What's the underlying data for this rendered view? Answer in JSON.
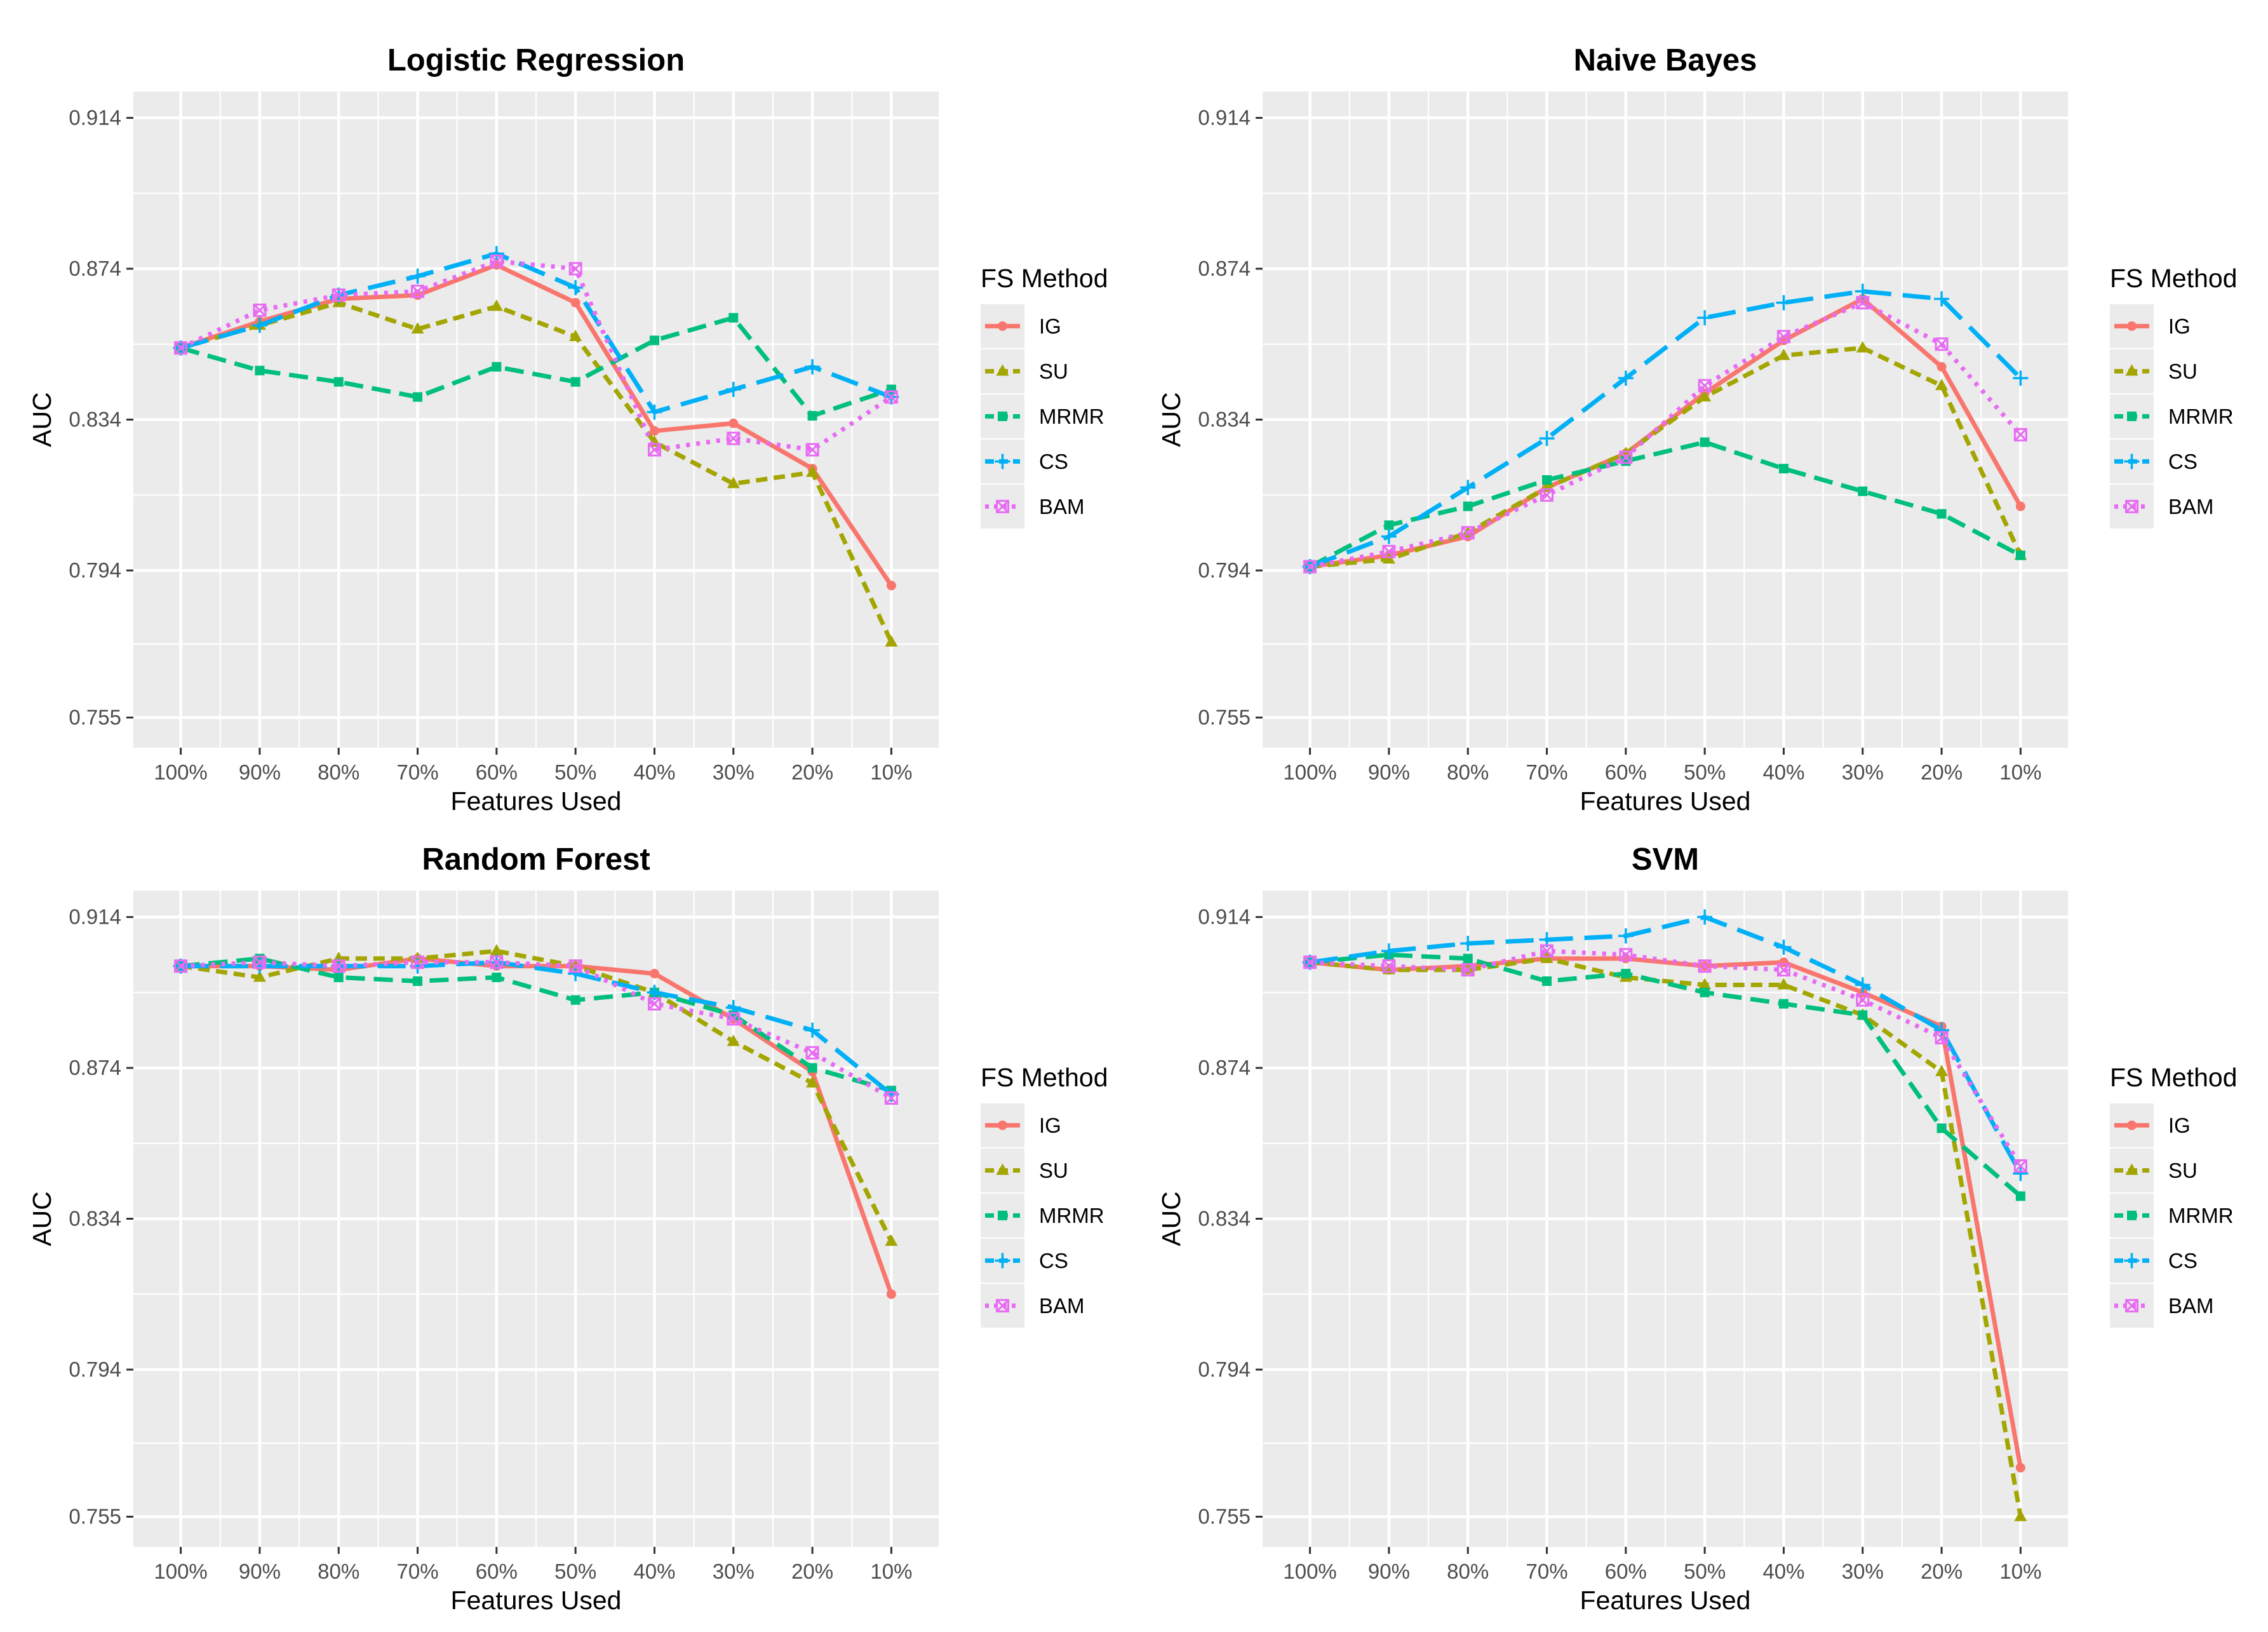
{
  "legend_title": "FS Method",
  "series_style": [
    {
      "name": "IG",
      "color": "#F8766D",
      "dash": "solid",
      "marker": "circle"
    },
    {
      "name": "SU",
      "color": "#A3A500",
      "dash": "short",
      "marker": "triangle"
    },
    {
      "name": "MRMR",
      "color": "#00BF7D",
      "dash": "long",
      "marker": "square"
    },
    {
      "name": "CS",
      "color": "#00B0F6",
      "dash": "longer",
      "marker": "plus"
    },
    {
      "name": "BAM",
      "color": "#E76BF3",
      "dash": "dotted",
      "marker": "boxcross"
    }
  ],
  "chart_data": [
    {
      "type": "line",
      "title": "Logistic Regression",
      "xlabel": "Features Used",
      "ylabel": "AUC",
      "ylim": [
        0.747,
        0.921
      ],
      "yticks": [
        "0.755",
        "0.794",
        "0.834",
        "0.874",
        "0.914"
      ],
      "categories": [
        "100%",
        "90%",
        "80%",
        "70%",
        "60%",
        "50%",
        "40%",
        "30%",
        "20%",
        "10%"
      ],
      "series": [
        {
          "name": "IG",
          "values": [
            0.853,
            0.86,
            0.866,
            0.867,
            0.875,
            0.865,
            0.831,
            0.833,
            0.821,
            0.79
          ]
        },
        {
          "name": "SU",
          "values": [
            0.853,
            0.859,
            0.865,
            0.858,
            0.864,
            0.856,
            0.828,
            0.817,
            0.82,
            0.775
          ]
        },
        {
          "name": "MRMR",
          "values": [
            0.853,
            0.847,
            0.844,
            0.84,
            0.848,
            0.844,
            0.855,
            0.861,
            0.835,
            0.842
          ]
        },
        {
          "name": "CS",
          "values": [
            0.853,
            0.859,
            0.867,
            0.872,
            0.878,
            0.869,
            0.836,
            0.842,
            0.848,
            0.84
          ]
        },
        {
          "name": "BAM",
          "values": [
            0.853,
            0.863,
            0.867,
            0.868,
            0.876,
            0.874,
            0.826,
            0.829,
            0.826,
            0.84
          ]
        }
      ]
    },
    {
      "type": "line",
      "title": "Naive Bayes",
      "xlabel": "Features Used",
      "ylabel": "AUC",
      "ylim": [
        0.747,
        0.921
      ],
      "yticks": [
        "0.755",
        "0.794",
        "0.834",
        "0.874",
        "0.914"
      ],
      "categories": [
        "100%",
        "90%",
        "80%",
        "70%",
        "60%",
        "50%",
        "40%",
        "30%",
        "20%",
        "10%"
      ],
      "series": [
        {
          "name": "IG",
          "values": [
            0.795,
            0.798,
            0.803,
            0.816,
            0.825,
            0.841,
            0.855,
            0.866,
            0.848,
            0.811
          ]
        },
        {
          "name": "SU",
          "values": [
            0.795,
            0.797,
            0.804,
            0.816,
            0.825,
            0.84,
            0.851,
            0.853,
            0.843,
            0.798
          ]
        },
        {
          "name": "MRMR",
          "values": [
            0.795,
            0.806,
            0.811,
            0.818,
            0.823,
            0.828,
            0.821,
            0.815,
            0.809,
            0.798
          ]
        },
        {
          "name": "CS",
          "values": [
            0.795,
            0.803,
            0.816,
            0.829,
            0.845,
            0.861,
            0.865,
            0.868,
            0.866,
            0.845
          ]
        },
        {
          "name": "BAM",
          "values": [
            0.795,
            0.799,
            0.804,
            0.814,
            0.824,
            0.843,
            0.856,
            0.865,
            0.854,
            0.83
          ]
        }
      ]
    },
    {
      "type": "line",
      "title": "Random Forest",
      "xlabel": "Features Used",
      "ylabel": "AUC",
      "ylim": [
        0.747,
        0.921
      ],
      "yticks": [
        "0.755",
        "0.794",
        "0.834",
        "0.874",
        "0.914"
      ],
      "categories": [
        "100%",
        "90%",
        "80%",
        "70%",
        "60%",
        "50%",
        "40%",
        "30%",
        "20%",
        "10%"
      ],
      "series": [
        {
          "name": "IG",
          "values": [
            0.901,
            0.901,
            0.9,
            0.903,
            0.901,
            0.901,
            0.899,
            0.887,
            0.873,
            0.814
          ]
        },
        {
          "name": "SU",
          "values": [
            0.901,
            0.898,
            0.903,
            0.903,
            0.905,
            0.901,
            0.894,
            0.881,
            0.87,
            0.828
          ]
        },
        {
          "name": "MRMR",
          "values": [
            0.901,
            0.903,
            0.898,
            0.897,
            0.898,
            0.892,
            0.894,
            0.888,
            0.874,
            0.868
          ]
        },
        {
          "name": "CS",
          "values": [
            0.901,
            0.901,
            0.901,
            0.901,
            0.902,
            0.899,
            0.894,
            0.89,
            0.884,
            0.867
          ]
        },
        {
          "name": "BAM",
          "values": [
            0.901,
            0.902,
            0.901,
            0.902,
            0.902,
            0.901,
            0.891,
            0.887,
            0.878,
            0.866
          ]
        }
      ]
    },
    {
      "type": "line",
      "title": "SVM",
      "xlabel": "Features Used",
      "ylabel": "AUC",
      "ylim": [
        0.747,
        0.921
      ],
      "yticks": [
        "0.755",
        "0.794",
        "0.834",
        "0.874",
        "0.914"
      ],
      "categories": [
        "100%",
        "90%",
        "80%",
        "70%",
        "60%",
        "50%",
        "40%",
        "30%",
        "20%",
        "10%"
      ],
      "series": [
        {
          "name": "IG",
          "values": [
            0.902,
            0.9,
            0.901,
            0.903,
            0.903,
            0.901,
            0.902,
            0.894,
            0.885,
            0.768
          ]
        },
        {
          "name": "SU",
          "values": [
            0.902,
            0.9,
            0.9,
            0.903,
            0.898,
            0.896,
            0.896,
            0.888,
            0.873,
            0.755
          ]
        },
        {
          "name": "MRMR",
          "values": [
            0.902,
            0.904,
            0.903,
            0.897,
            0.899,
            0.894,
            0.891,
            0.888,
            0.858,
            0.84
          ]
        },
        {
          "name": "CS",
          "values": [
            0.902,
            0.905,
            0.907,
            0.908,
            0.909,
            0.914,
            0.906,
            0.896,
            0.884,
            0.846
          ]
        },
        {
          "name": "BAM",
          "values": [
            0.902,
            0.901,
            0.9,
            0.905,
            0.904,
            0.901,
            0.9,
            0.892,
            0.882,
            0.848
          ]
        }
      ]
    }
  ]
}
